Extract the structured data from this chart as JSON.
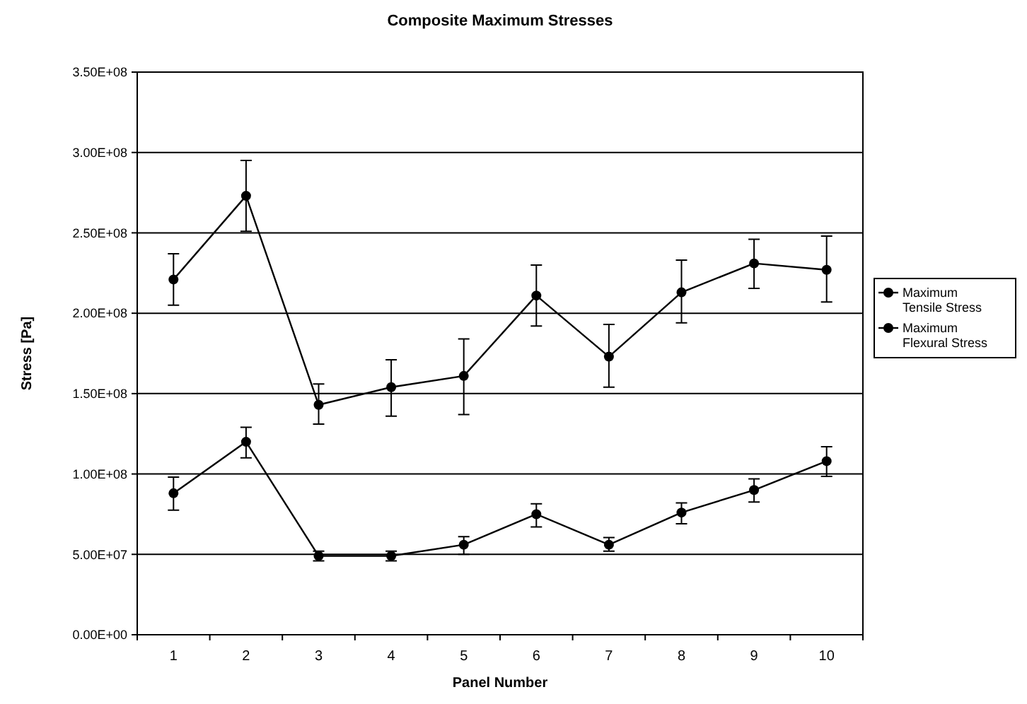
{
  "chart_data": {
    "type": "line",
    "title": "Composite Maximum Stresses",
    "xlabel": "Panel Number",
    "ylabel": "Stress [Pa]",
    "categories": [
      "1",
      "2",
      "3",
      "4",
      "5",
      "6",
      "7",
      "8",
      "9",
      "10"
    ],
    "series": [
      {
        "name": "Maximum Tensile Stress",
        "color": "#000000",
        "values": [
          88000000,
          120000000,
          49000000,
          49000000,
          56000000,
          75000000,
          56000000,
          76000000,
          90000000,
          108000000
        ],
        "errors": [
          [
            77500000,
            98000000
          ],
          [
            110000000,
            129000000
          ],
          [
            46000000,
            52000000
          ],
          [
            46000000,
            52000000
          ],
          [
            50000000,
            61000000
          ],
          [
            67000000,
            81500000
          ],
          [
            52000000,
            60500000
          ],
          [
            69000000,
            82000000
          ],
          [
            82500000,
            97000000
          ],
          [
            98500000,
            117000000
          ]
        ]
      },
      {
        "name": "Maximum Flexural Stress",
        "color": "#000000",
        "values": [
          221000000,
          273000000,
          143000000,
          154000000,
          161000000,
          211000000,
          173000000,
          213000000,
          231000000,
          227000000
        ],
        "errors": [
          [
            205000000,
            237000000
          ],
          [
            251000000,
            295000000
          ],
          [
            131000000,
            156000000
          ],
          [
            136000000,
            171000000
          ],
          [
            137000000,
            184000000
          ],
          [
            192000000,
            230000000
          ],
          [
            154000000,
            193000000
          ],
          [
            194000000,
            233000000
          ],
          [
            215500000,
            246000000
          ],
          [
            207000000,
            248000000
          ]
        ]
      }
    ],
    "ylim": [
      0,
      350000000
    ],
    "yticks": [
      {
        "value": 0,
        "label": "0.00E+00"
      },
      {
        "value": 50000000,
        "label": "5.00E+07"
      },
      {
        "value": 100000000,
        "label": "1.00E+08"
      },
      {
        "value": 150000000,
        "label": "1.50E+08"
      },
      {
        "value": 200000000,
        "label": "2.00E+08"
      },
      {
        "value": 250000000,
        "label": "2.50E+08"
      },
      {
        "value": 300000000,
        "label": "3.00E+08"
      },
      {
        "value": 350000000,
        "label": "3.50E+08"
      }
    ],
    "grid": "y",
    "legend": "right",
    "marker": "circle",
    "line_style": "solid"
  }
}
